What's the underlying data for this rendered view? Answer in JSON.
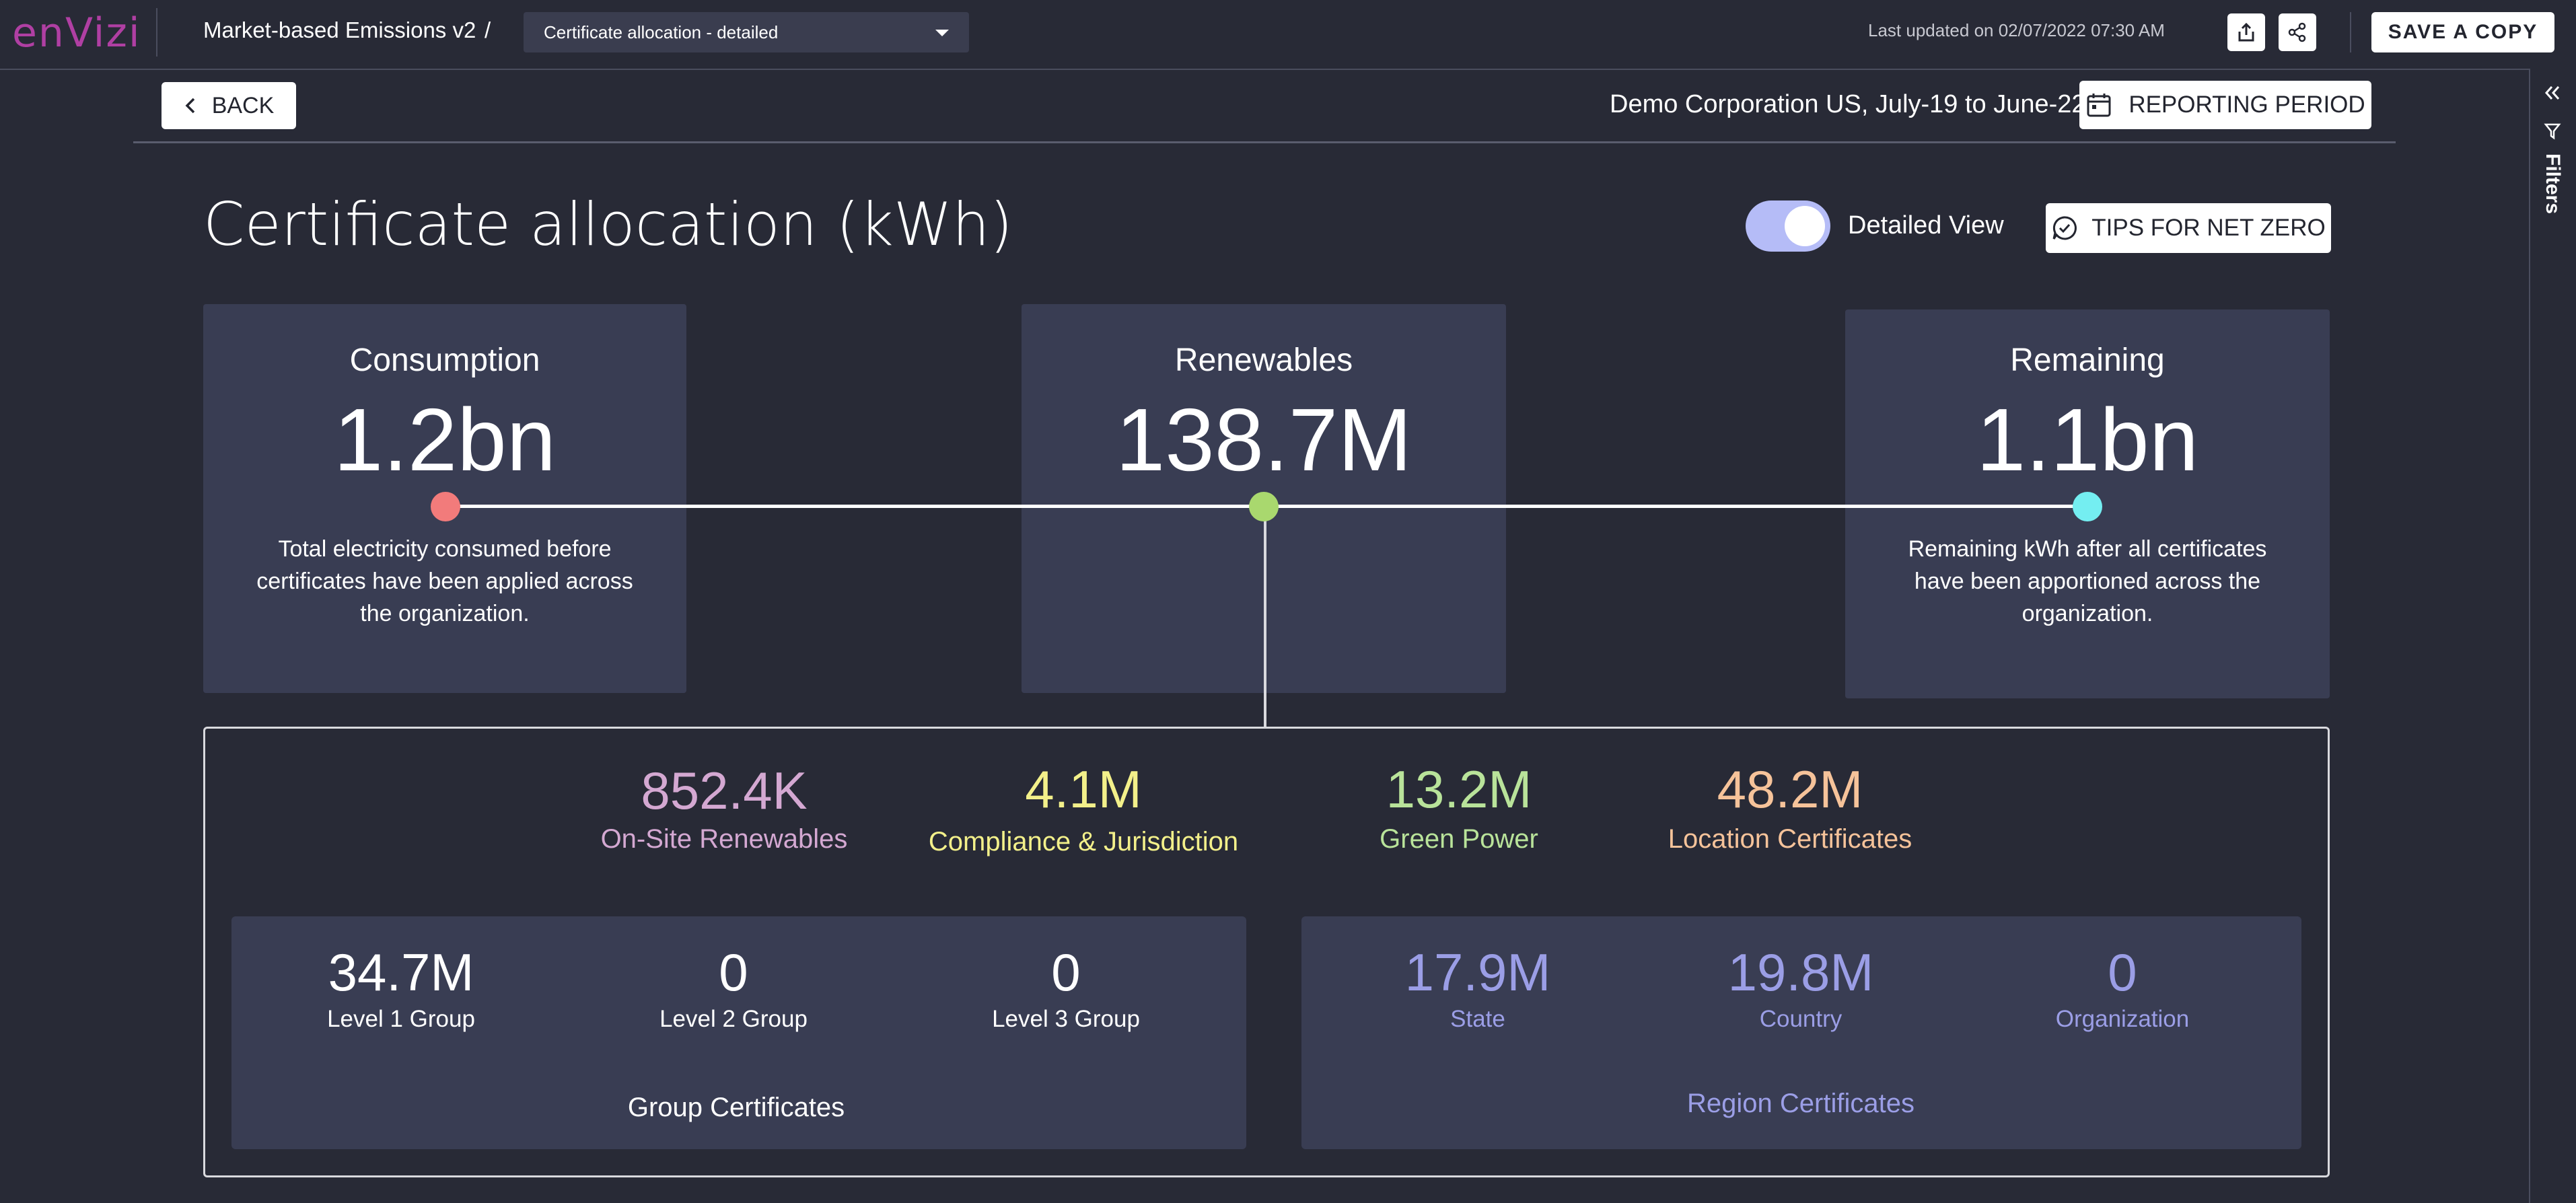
{
  "app": {
    "logo": "enVizi",
    "breadcrumb_title": "Market-based Emissions v2",
    "breadcrumb_sep": "/",
    "view_select": "Certificate allocation - detailed",
    "last_updated": "Last updated on 02/07/2022 07:30 AM",
    "save_copy": "SAVE A COPY",
    "filters_label": "Filters"
  },
  "subheader": {
    "back": "BACK",
    "context": "Demo Corporation US, July-19 to June-22",
    "reporting_period": "REPORTING PERIOD"
  },
  "page": {
    "title": "Certificate allocation (kWh)",
    "toggle_label": "Detailed View",
    "toggle_on": true,
    "tips": "TIPS FOR NET ZERO"
  },
  "cards": {
    "consumption": {
      "title": "Consumption",
      "value": "1.2bn",
      "desc_line1": "Total electricity consumed before",
      "desc_line2": "certificates have been applied across",
      "desc_line3": "the organization."
    },
    "renewables": {
      "title": "Renewables",
      "value": "138.7M"
    },
    "remaining": {
      "title": "Remaining",
      "value": "1.1bn",
      "desc_line1": "Remaining kWh after all certificates",
      "desc_line2": "have been apportioned across the",
      "desc_line3": "organization."
    }
  },
  "breakdown": {
    "onsite": {
      "value": "852.4K",
      "label": "On-Site Renewables",
      "color": "#d4a8d2"
    },
    "compliance": {
      "value": "4.1M",
      "label": "Compliance & Jurisdiction",
      "color": "#f3f08a"
    },
    "green": {
      "value": "13.2M",
      "label": "Green Power",
      "color": "#b9e39a"
    },
    "location": {
      "value": "48.2M",
      "label": "Location Certificates",
      "color": "#f6c39a"
    }
  },
  "group_certs": {
    "title": "Group Certificates",
    "items": [
      {
        "value": "34.7M",
        "label": "Level 1 Group"
      },
      {
        "value": "0",
        "label": "Level 2 Group"
      },
      {
        "value": "0",
        "label": "Level 3 Group"
      }
    ]
  },
  "region_certs": {
    "title": "Region Certificates",
    "color": "#9b9ee6",
    "items": [
      {
        "value": "17.9M",
        "label": "State"
      },
      {
        "value": "19.8M",
        "label": "Country"
      },
      {
        "value": "0",
        "label": "Organization"
      }
    ]
  },
  "colors": {
    "background": "#282a36",
    "card": "#393d53",
    "consumption_dot": "#f27b7b",
    "renewables_dot": "#a9d86e",
    "remaining_dot": "#74eef1"
  }
}
